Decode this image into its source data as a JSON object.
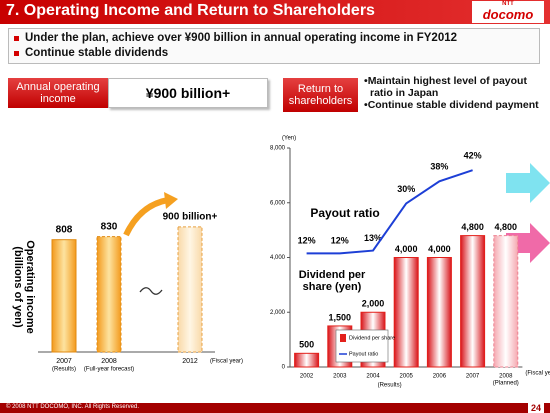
{
  "header": {
    "title": "7. Operating Income and Return to Shareholders",
    "logo_top": "NTT",
    "logo": "docomo"
  },
  "bullets": [
    "Under the plan, achieve over ¥900 billion in annual operating income in FY2012",
    "Continue stable dividends"
  ],
  "boxes": {
    "income_label": "Annual operating income",
    "income_value": "¥900 billion+",
    "return_label": "Return to shareholders",
    "return_points": [
      "Maintain highest level of payout ratio in Japan",
      "Continue stable dividend payment"
    ]
  },
  "chart_data": [
    {
      "type": "bar",
      "ylabel": "Operating income (billions of yen)",
      "xlabel": "(Fiscal year)",
      "categories": [
        "2007",
        "2008",
        "2012"
      ],
      "category_notes": [
        "(Results)",
        "(Full-year forecast)",
        null
      ],
      "values": [
        808,
        830,
        900
      ],
      "value_labels": [
        "808",
        "830",
        "900 billion+"
      ],
      "color": "#f5a623",
      "ylim": [
        0,
        1000
      ]
    },
    {
      "type": "bar",
      "ylabel": "(Yen)",
      "xlabel": "(Fiscal year)",
      "categories": [
        "2002",
        "2003",
        "2004",
        "2005",
        "2006",
        "2007",
        "2008"
      ],
      "group_labels": [
        "(Results)",
        "(Planned)"
      ],
      "ylim": [
        0,
        8000
      ],
      "yticks": [
        0,
        {
          "value": 2000,
          "label": "2,000"
        },
        {
          "value": 4000,
          "label": "4,000"
        },
        {
          "value": 6000,
          "label": "6,000"
        },
        {
          "value": 8000,
          "label": "8,000"
        }
      ],
      "y2lim": [
        -29,
        50
      ],
      "annotations": [
        "Payout ratio",
        "Dividend per share (yen)"
      ],
      "series": [
        {
          "name": "Dividend per share",
          "type": "bar",
          "color": "#e3201b",
          "values": [
            500,
            1500,
            2000,
            4000,
            4000,
            4800,
            4800
          ],
          "value_labels": [
            "500",
            "1,500",
            "2,000",
            "4,000",
            "4,000",
            "4,800",
            "4,800"
          ]
        },
        {
          "name": "Payout ratio",
          "type": "line",
          "axis": "y2",
          "color": "#1d3fd6",
          "values": [
            12,
            12,
            13,
            30,
            38,
            42,
            null
          ],
          "value_labels": [
            "12%",
            "12%",
            "13%",
            "30%",
            "38%",
            "42%",
            null
          ]
        }
      ]
    }
  ],
  "footer": {
    "copyright": "© 2008 NTT DOCOMO, INC. All Rights Reserved.",
    "page": "24"
  }
}
